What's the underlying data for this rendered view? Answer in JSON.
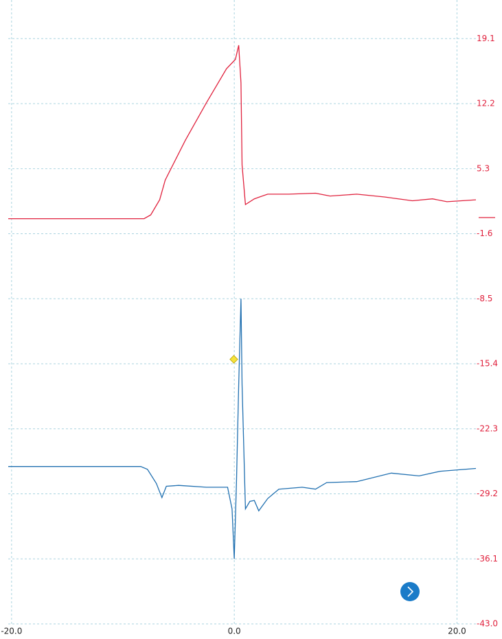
{
  "chart_data": {
    "type": "line",
    "xlim": [
      -20.3,
      21.7
    ],
    "ylim": [
      -44.6,
      23.2
    ],
    "xticks": [
      {
        "value": -20,
        "label": "-20.0"
      },
      {
        "value": 0,
        "label": "0.0"
      },
      {
        "value": 20,
        "label": "20.0"
      }
    ],
    "yticks": [
      19.1,
      12.2,
      5.3,
      -1.6,
      -8.5,
      -15.4,
      -22.3,
      -29.2,
      -36.1,
      {
        "value": -43,
        "label": "-43.0"
      }
    ],
    "grid": true,
    "series": [
      {
        "color": "#e0203c",
        "x": [
          -20.3,
          -8.1,
          -7.5,
          -6.7,
          -6.2,
          -4.4,
          -2.5,
          -0.7,
          0.1,
          0.4,
          0.6,
          0.7,
          1.0,
          1.8,
          3.0,
          4.9,
          7.3,
          8.6,
          11.0,
          13.5,
          16.0,
          17.8,
          19.1,
          21.7
        ],
        "values": [
          0.0,
          0.0,
          0.4,
          2.0,
          4.1,
          8.3,
          12.3,
          15.9,
          16.9,
          18.4,
          14.4,
          5.7,
          1.5,
          2.1,
          2.6,
          2.6,
          2.7,
          2.4,
          2.6,
          2.3,
          1.9,
          2.1,
          1.8,
          2.0
        ]
      },
      {
        "color": "#1f6fb0",
        "x": [
          -20.3,
          -8.4,
          -7.8,
          -7.0,
          -6.5,
          -6.1,
          -5.0,
          -2.5,
          -0.6,
          -0.2,
          0.0,
          0.2,
          0.4,
          0.6,
          0.7,
          1.0,
          1.4,
          1.8,
          2.2,
          3.0,
          4.0,
          6.1,
          7.3,
          8.3,
          11.0,
          14.1,
          16.6,
          18.5,
          21.7
        ],
        "values": [
          -26.3,
          -26.3,
          -26.6,
          -28.1,
          -29.6,
          -28.4,
          -28.3,
          -28.5,
          -28.5,
          -30.8,
          -36.1,
          -27.8,
          -17.6,
          -8.5,
          -17.6,
          -30.8,
          -30.0,
          -29.9,
          -31.0,
          -29.7,
          -28.7,
          -28.5,
          -28.7,
          -28.0,
          -27.9,
          -27.0,
          -27.3,
          -26.8,
          -26.5
        ]
      }
    ]
  }
}
